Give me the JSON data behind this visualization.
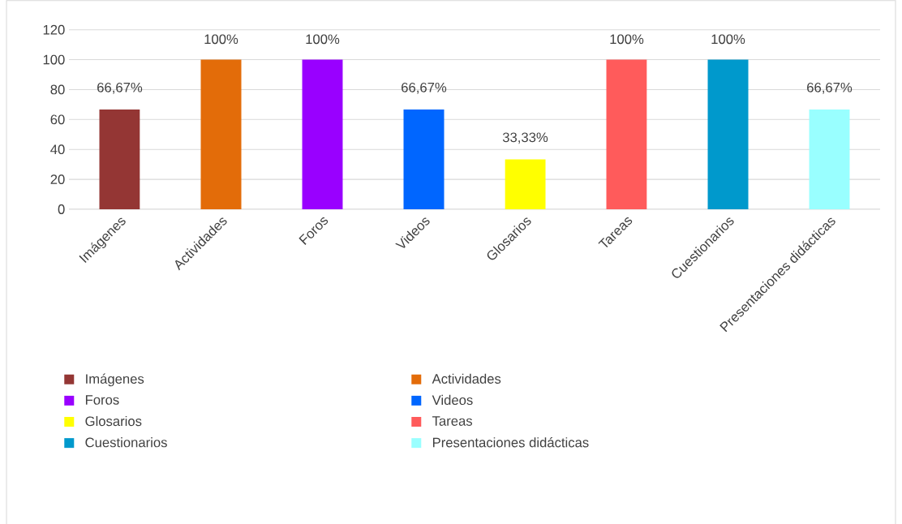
{
  "chart_data": {
    "type": "bar",
    "categories": [
      "Imágenes",
      "Actividades",
      "Foros",
      "Videos",
      "Glosarios",
      "Tareas",
      "Cuestionarios",
      "Presentaciones didácticas"
    ],
    "series": [
      {
        "name": "Imágenes",
        "color": "#943634",
        "values": [
          66.67,
          null,
          null,
          null,
          null,
          null,
          null,
          null
        ],
        "value_labels": [
          "66,67%",
          null,
          null,
          null,
          null,
          null,
          null,
          null
        ]
      },
      {
        "name": "Actividades",
        "color": "#e36c09",
        "values": [
          null,
          100,
          null,
          null,
          null,
          null,
          null,
          null
        ],
        "value_labels": [
          null,
          "100%",
          null,
          null,
          null,
          null,
          null,
          null
        ]
      },
      {
        "name": "Foros",
        "color": "#9900ff",
        "values": [
          null,
          null,
          100,
          null,
          null,
          null,
          null,
          null
        ],
        "value_labels": [
          null,
          null,
          "100%",
          null,
          null,
          null,
          null,
          null
        ]
      },
      {
        "name": "Videos",
        "color": "#0066ff",
        "values": [
          null,
          null,
          null,
          66.67,
          null,
          null,
          null,
          null
        ],
        "value_labels": [
          null,
          null,
          null,
          "66,67%",
          null,
          null,
          null,
          null
        ]
      },
      {
        "name": "Glosarios",
        "color": "#ffff00",
        "values": [
          null,
          null,
          null,
          null,
          33.33,
          null,
          null,
          null
        ],
        "value_labels": [
          null,
          null,
          null,
          null,
          "33,33%",
          null,
          null,
          null
        ]
      },
      {
        "name": "Tareas",
        "color": "#ff5b5b",
        "values": [
          null,
          null,
          null,
          null,
          null,
          100,
          null,
          null
        ],
        "value_labels": [
          null,
          null,
          null,
          null,
          null,
          "100%",
          null,
          null
        ]
      },
      {
        "name": "Cuestionarios",
        "color": "#0099cc",
        "values": [
          null,
          null,
          null,
          null,
          null,
          null,
          100,
          null
        ],
        "value_labels": [
          null,
          null,
          null,
          null,
          null,
          null,
          "100%",
          null
        ]
      },
      {
        "name": "Presentaciones didácticas",
        "color": "#99ffff",
        "values": [
          null,
          null,
          null,
          null,
          null,
          null,
          null,
          66.67
        ],
        "value_labels": [
          null,
          null,
          null,
          null,
          null,
          null,
          null,
          "66,67%"
        ]
      }
    ],
    "ylim": [
      0,
      120
    ],
    "yticks": [
      0,
      20,
      40,
      60,
      80,
      100,
      120
    ],
    "grid": "y",
    "legend": "bottom"
  }
}
